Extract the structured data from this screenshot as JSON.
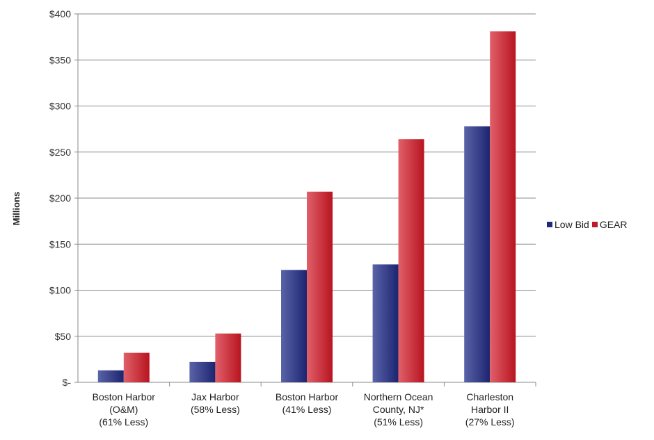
{
  "chart_data": {
    "type": "bar",
    "ylabel": "Millions",
    "xlabel": "",
    "ylim": [
      0,
      400
    ],
    "y_ticks": [
      "$-",
      "$50",
      "$100",
      "$150",
      "$200",
      "$250",
      "$300",
      "$350",
      "$400"
    ],
    "y_tick_values": [
      0,
      50,
      100,
      150,
      200,
      250,
      300,
      350,
      400
    ],
    "categories": [
      [
        "Boston Harbor",
        "(O&M)",
        "(61% Less)"
      ],
      [
        "Jax Harbor",
        "(58% Less)"
      ],
      [
        "Boston Harbor",
        "(41% Less)"
      ],
      [
        "Northern Ocean",
        "County, NJ*",
        "(51% Less)"
      ],
      [
        "Charleston",
        "Harbor II",
        "(27% Less)"
      ]
    ],
    "series": [
      {
        "name": "Low Bid",
        "color": "#1f2a7a",
        "values": [
          13,
          22,
          122,
          128,
          278
        ]
      },
      {
        "name": "GEAR",
        "color": "#c0182a",
        "values": [
          32,
          53,
          207,
          264,
          381
        ]
      }
    ],
    "legend_position": "right",
    "grid": true
  }
}
